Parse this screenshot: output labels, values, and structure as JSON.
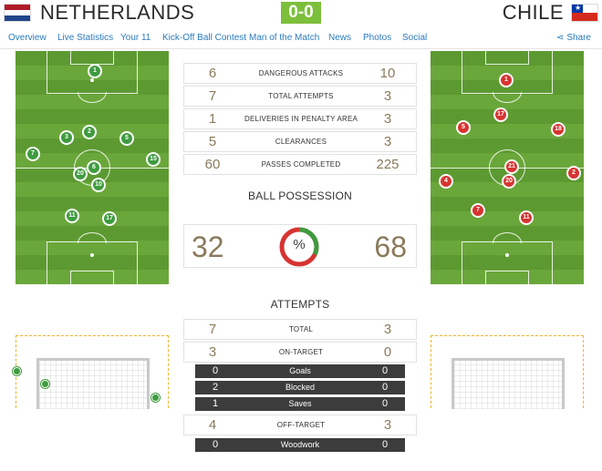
{
  "header": {
    "home_team": "NETHERLANDS",
    "away_team": "CHILE",
    "score": "0-0",
    "score_color": "#7cbf3a"
  },
  "nav": {
    "items": [
      "Overview",
      "Live Statistics",
      "Your 11",
      "Kick-Off Ball Contest",
      "Man of the Match",
      "News",
      "Photos",
      "Social"
    ],
    "share": "Share",
    "share_icon": "share-icon"
  },
  "home_lineup": [
    "1",
    "3",
    "2",
    "5",
    "7",
    "15",
    "6",
    "20",
    "10",
    "11",
    "17"
  ],
  "away_lineup": [
    "1",
    "17",
    "5",
    "18",
    "21",
    "20",
    "2",
    "4",
    "7",
    "11"
  ],
  "stats": [
    {
      "home": "6",
      "label": "DANGEROUS ATTACKS",
      "away": "10"
    },
    {
      "home": "7",
      "label": "TOTAL ATTEMPTS",
      "away": "3"
    },
    {
      "home": "1",
      "label": "DELIVERIES IN PENALTY AREA",
      "away": "3"
    },
    {
      "home": "5",
      "label": "CLEARANCES",
      "away": "3"
    },
    {
      "home": "60",
      "label": "PASSES COMPLETED",
      "away": "225"
    }
  ],
  "possession": {
    "title": "BALL POSSESSION",
    "home": "32",
    "away": "68",
    "symbol": "%",
    "home_fraction": 0.32,
    "home_color": "#3f9b3f",
    "away_color": "#d63431"
  },
  "attempts": {
    "title": "ATTEMPTS",
    "rows": [
      {
        "home": "7",
        "label": "TOTAL",
        "away": "3",
        "style": "light"
      },
      {
        "home": "3",
        "label": "ON-TARGET",
        "away": "0",
        "style": "light"
      },
      {
        "home": "0",
        "label": "Goals",
        "away": "0",
        "style": "dark"
      },
      {
        "home": "2",
        "label": "Blocked",
        "away": "0",
        "style": "dark"
      },
      {
        "home": "1",
        "label": "Saves",
        "away": "0",
        "style": "dark"
      },
      {
        "home": "4",
        "label": "OFF-TARGET",
        "away": "3",
        "style": "light"
      },
      {
        "home": "0",
        "label": "Woodwork",
        "away": "0",
        "style": "dark"
      }
    ]
  },
  "colors": {
    "link": "#2a7bbf",
    "home_player": "#3f9b3f",
    "away_player": "#d63431",
    "goal_outline": "#f0b22a"
  }
}
